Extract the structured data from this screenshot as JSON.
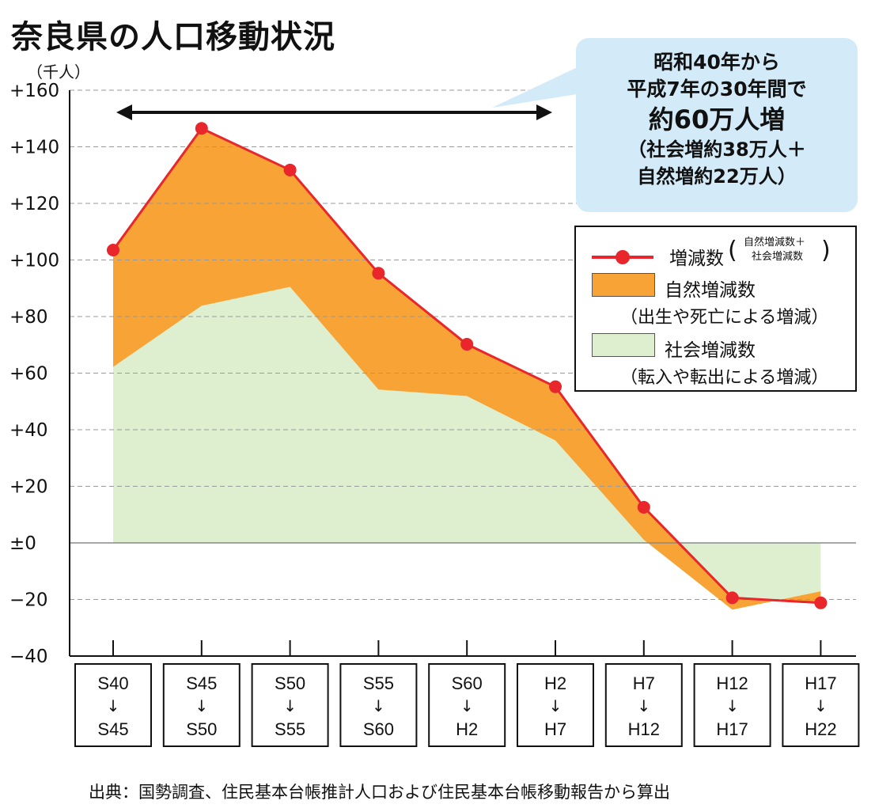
{
  "title": "奈良県の人口移動状況",
  "unit_label": "（千人）",
  "callout": {
    "line1": "昭和40年から",
    "line2": "平成7年の30年間で",
    "line3": "約60万人増",
    "line4": "（社会増約38万人＋",
    "line5": "自然増約22万人）"
  },
  "legend": {
    "total_label": "増減数",
    "total_note_line1": "自然増減数＋",
    "total_note_line2": "社会増減数",
    "natural_label": "自然増減数",
    "natural_sub": "（出生や死亡による増減）",
    "social_label": "社会増減数",
    "social_sub": "（転入や転出による増減）"
  },
  "source": "出典：国勢調査、住民基本台帳推計人口および住民基本台帳移動報告から算出",
  "colors": {
    "total_line": "#e8262b",
    "natural_fill": "#f7a335",
    "social_fill": "#ddefcf",
    "callout_bg": "#d3ebf8",
    "grid": "#9a9a9a"
  },
  "chart_data": {
    "type": "area",
    "categories": [
      {
        "from": "S40",
        "to": "S45"
      },
      {
        "from": "S45",
        "to": "S50"
      },
      {
        "from": "S50",
        "to": "S55"
      },
      {
        "from": "S55",
        "to": "S60"
      },
      {
        "from": "S60",
        "to": "H2"
      },
      {
        "from": "H2",
        "to": "H7"
      },
      {
        "from": "H7",
        "to": "H12"
      },
      {
        "from": "H12",
        "to": "H17"
      },
      {
        "from": "H17",
        "to": "H22"
      }
    ],
    "arrow_glyph": "↓",
    "yticks": [
      "+160",
      "+140",
      "+120",
      "+100",
      "+80",
      "+60",
      "+40",
      "+20",
      "±0",
      "−20",
      "−40"
    ],
    "ylim": [
      -40,
      160
    ],
    "series": [
      {
        "name": "増減数",
        "values": [
          103.5,
          146.5,
          131.8,
          95.3,
          70.2,
          55.2,
          12.6,
          -19.4,
          -21.2
        ]
      },
      {
        "name": "自然増減数",
        "values": [
          41.3,
          62.7,
          41.3,
          41.1,
          18.3,
          19.0,
          11.5,
          4.2,
          -4.1
        ]
      },
      {
        "name": "社会増減数",
        "values": [
          62.2,
          83.8,
          90.5,
          54.2,
          51.9,
          36.2,
          1.1,
          -23.6,
          -17.1
        ]
      }
    ],
    "span_arrow": {
      "from": "S40",
      "to": "H7"
    },
    "grid": true,
    "legend_position": "right"
  }
}
